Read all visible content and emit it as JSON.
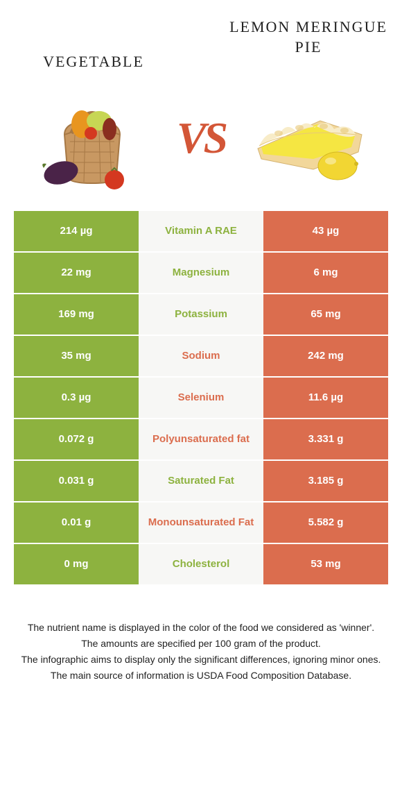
{
  "header": {
    "left_title": "VEGETABLE",
    "right_title": "LEMON MERINGUE PIE",
    "vs_label": "VS"
  },
  "colors": {
    "green": "#8db23f",
    "orange": "#db6d4e",
    "light_bg": "#f7f7f5",
    "lighter_bg": "#f0efed",
    "page_bg": "#ffffff"
  },
  "table": {
    "rows": [
      {
        "label": "Vitamin A RAE",
        "left": "214 µg",
        "right": "43 µg",
        "winner": "left"
      },
      {
        "label": "Magnesium",
        "left": "22 mg",
        "right": "6 mg",
        "winner": "left"
      },
      {
        "label": "Potassium",
        "left": "169 mg",
        "right": "65 mg",
        "winner": "left"
      },
      {
        "label": "Sodium",
        "left": "35 mg",
        "right": "242 mg",
        "winner": "right"
      },
      {
        "label": "Selenium",
        "left": "0.3 µg",
        "right": "11.6 µg",
        "winner": "right"
      },
      {
        "label": "Polyunsaturated fat",
        "left": "0.072 g",
        "right": "3.331 g",
        "winner": "right"
      },
      {
        "label": "Saturated Fat",
        "left": "0.031 g",
        "right": "3.185 g",
        "winner": "left"
      },
      {
        "label": "Monounsaturated Fat",
        "left": "0.01 g",
        "right": "5.582 g",
        "winner": "right"
      },
      {
        "label": "Cholesterol",
        "left": "0 mg",
        "right": "53 mg",
        "winner": "left"
      }
    ]
  },
  "footnotes": [
    "The nutrient name is displayed in the color of the food we considered as 'winner'.",
    "The amounts are specified per 100 gram of the product.",
    "The infographic aims to display only the significant differences, ignoring minor ones.",
    "The main source of information is USDA Food Composition Database."
  ]
}
